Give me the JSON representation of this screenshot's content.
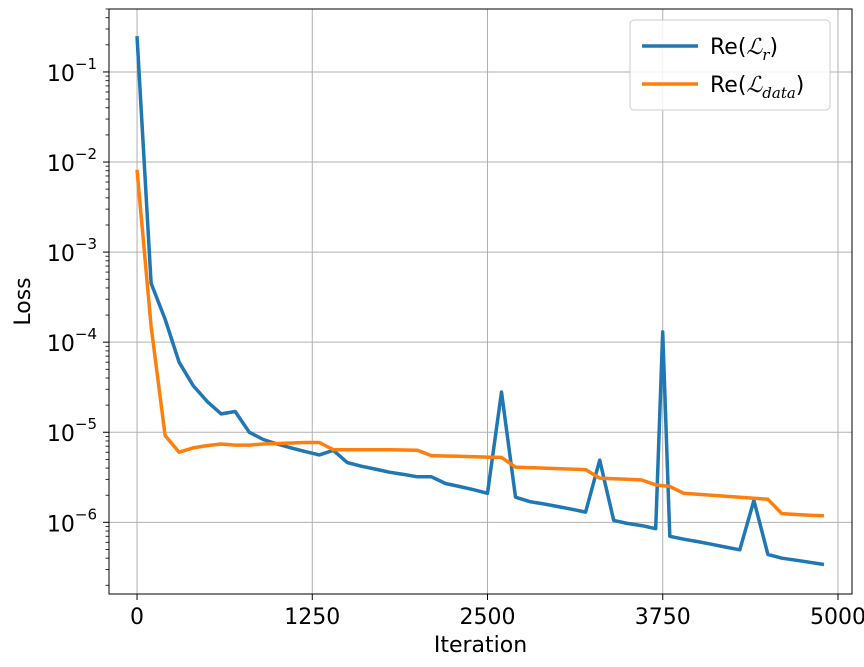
{
  "chart_data": {
    "type": "line",
    "xlabel": "Iteration",
    "ylabel": "Loss",
    "xlim": [
      -200,
      5100
    ],
    "ylim": [
      1.6e-07,
      0.5
    ],
    "yscale": "log",
    "grid": true,
    "legend_position": "top-right",
    "xticks": [
      0,
      1250,
      2500,
      3750,
      5000
    ],
    "xtick_labels": [
      "0",
      "1250",
      "2500",
      "3750",
      "5000"
    ],
    "yticks": [
      1e-06,
      1e-05,
      0.0001,
      0.001,
      0.01,
      0.1
    ],
    "ytick_labels": [
      {
        "base": "10",
        "exp": "−6"
      },
      {
        "base": "10",
        "exp": "−5"
      },
      {
        "base": "10",
        "exp": "−4"
      },
      {
        "base": "10",
        "exp": "−3"
      },
      {
        "base": "10",
        "exp": "−2"
      },
      {
        "base": "10",
        "exp": "−1"
      }
    ],
    "series": [
      {
        "name": "Re(ℒr)",
        "legend_prefix": "Re(",
        "legend_symbol": "ℒ",
        "legend_sub": "r",
        "legend_suffix": ")",
        "color": "#1f77b4",
        "x": [
          0,
          100,
          200,
          300,
          400,
          500,
          600,
          700,
          800,
          900,
          1000,
          1100,
          1200,
          1300,
          1400,
          1500,
          1600,
          1700,
          1800,
          1900,
          2000,
          2100,
          2200,
          2300,
          2400,
          2500,
          2600,
          2700,
          2800,
          2900,
          3000,
          3100,
          3200,
          3300,
          3400,
          3500,
          3600,
          3700,
          3750,
          3800,
          3900,
          4000,
          4100,
          4200,
          4300,
          4400,
          4500,
          4600,
          4700,
          4800,
          4900
        ],
        "y": [
          0.25,
          0.00045,
          0.00018,
          6e-05,
          3.3e-05,
          2.2e-05,
          1.6e-05,
          1.7e-05,
          1e-05,
          8.3e-06,
          7.4e-06,
          6.7e-06,
          6.1e-06,
          5.6e-06,
          6.3e-06,
          4.6e-06,
          4.2e-06,
          3.9e-06,
          3.6e-06,
          3.4e-06,
          3.2e-06,
          3.2e-06,
          2.7e-06,
          2.5e-06,
          2.3e-06,
          2.1e-06,
          2.8e-05,
          1.9e-06,
          1.7e-06,
          1.6e-06,
          1.5e-06,
          1.4e-06,
          1.3e-06,
          4.9e-06,
          1.05e-06,
          9.7e-07,
          9.2e-07,
          8.5e-07,
          0.00013,
          7e-07,
          6.5e-07,
          6.1e-07,
          5.7e-07,
          5.3e-07,
          4.95e-07,
          1.75e-06,
          4.4e-07,
          4e-07,
          3.8e-07,
          3.6e-07,
          3.4e-07
        ]
      },
      {
        "name": "Re(ℒdata)",
        "legend_prefix": "Re(",
        "legend_symbol": "ℒ",
        "legend_sub": "data",
        "legend_suffix": ")",
        "color": "#ff7f0e",
        "x": [
          0,
          100,
          200,
          300,
          400,
          500,
          600,
          700,
          800,
          900,
          1000,
          1100,
          1200,
          1300,
          1400,
          1500,
          1600,
          1700,
          1800,
          1900,
          2000,
          2100,
          2200,
          2300,
          2400,
          2500,
          2600,
          2700,
          2800,
          2900,
          3000,
          3100,
          3200,
          3300,
          3400,
          3500,
          3600,
          3700,
          3800,
          3900,
          4000,
          4100,
          4200,
          4300,
          4400,
          4500,
          4600,
          4700,
          4800,
          4900
        ],
        "y": [
          0.0082,
          0.00015,
          9.2e-06,
          6e-06,
          6.7e-06,
          7.1e-06,
          7.4e-06,
          7.2e-06,
          7.2e-06,
          7.4e-06,
          7.5e-06,
          7.6e-06,
          7.7e-06,
          7.7e-06,
          6.4e-06,
          6.4e-06,
          6.4e-06,
          6.4e-06,
          6.4e-06,
          6.35e-06,
          6.3e-06,
          5.5e-06,
          5.45e-06,
          5.4e-06,
          5.35e-06,
          5.3e-06,
          5.25e-06,
          4.1e-06,
          4.05e-06,
          4e-06,
          3.95e-06,
          3.9e-06,
          3.85e-06,
          3.1e-06,
          3.05e-06,
          3e-06,
          2.95e-06,
          2.6e-06,
          2.5e-06,
          2.1e-06,
          2.05e-06,
          2e-06,
          1.95e-06,
          1.9e-06,
          1.85e-06,
          1.8e-06,
          1.25e-06,
          1.22e-06,
          1.2e-06,
          1.18e-06
        ]
      }
    ]
  }
}
